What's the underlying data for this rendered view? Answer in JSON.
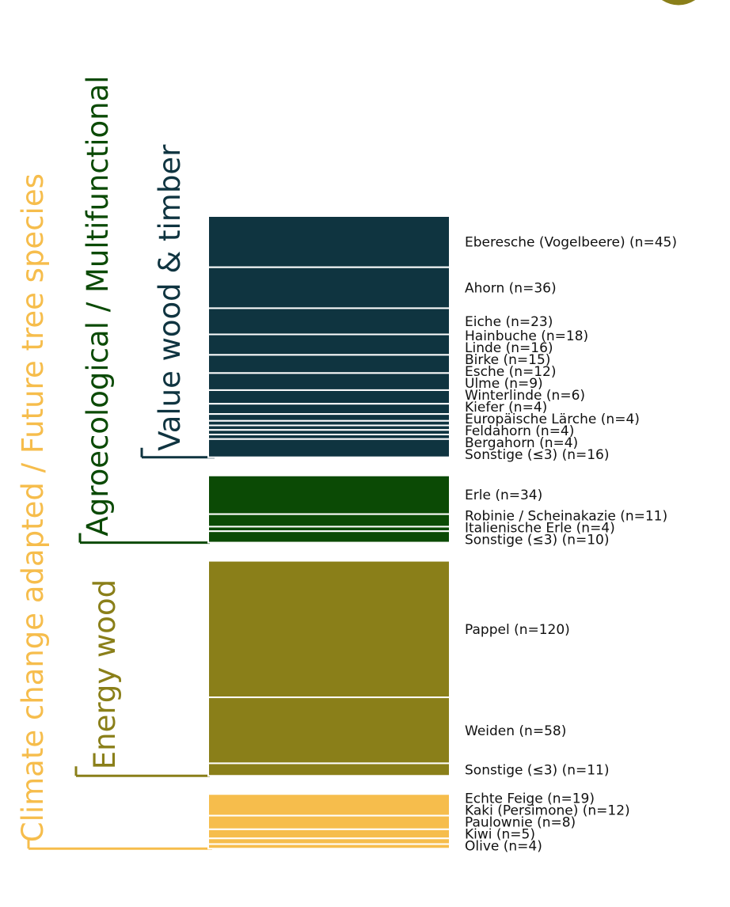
{
  "chart_data": {
    "type": "bar",
    "stacked": true,
    "orientation": "vertical",
    "groups": [
      {
        "name": "Value wood & timber",
        "color": "#0f3440",
        "items": [
          {
            "label": "Eberesche (Vogelbeere) (n=45)",
            "n": 45
          },
          {
            "label": "Ahorn (n=36)",
            "n": 36
          },
          {
            "label": "Eiche (n=23)",
            "n": 23
          },
          {
            "label": "Hainbuche (n=18)",
            "n": 18
          },
          {
            "label": "Linde (n=16)",
            "n": 16
          },
          {
            "label": "Birke (n=15)",
            "n": 15
          },
          {
            "label": "Esche (n=12)",
            "n": 12
          },
          {
            "label": "Ulme (n=9)",
            "n": 9
          },
          {
            "label": "Winterlinde (n=6)",
            "n": 6
          },
          {
            "label": "Kiefer (n=4)",
            "n": 4
          },
          {
            "label": "Europäische Lärche (n=4)",
            "n": 4
          },
          {
            "label": "Feldahorn (n=4)",
            "n": 4
          },
          {
            "label": "Bergahorn (n=4)",
            "n": 4
          },
          {
            "label": "Sonstige (≤3) (n=16)",
            "n": 16
          }
        ]
      },
      {
        "name": "Agroecological / Multifunctional",
        "color": "#0b4a05",
        "items": [
          {
            "label": "Erle (n=34)",
            "n": 34
          },
          {
            "label": "Robinie / Scheinakazie (n=11)",
            "n": 11
          },
          {
            "label": "Italienische Erle (n=4)",
            "n": 4
          },
          {
            "label": "Sonstige (≤3) (n=10)",
            "n": 10
          }
        ]
      },
      {
        "name": "Energy wood",
        "color": "#8a7f19",
        "items": [
          {
            "label": "Pappel (n=120)",
            "n": 120
          },
          {
            "label": "Weiden (n=58)",
            "n": 58
          },
          {
            "label": "Sonstige (≤3) (n=11)",
            "n": 11
          }
        ]
      },
      {
        "name": "Climate change adapted / Future tree species",
        "color": "#f6bd4c",
        "items": [
          {
            "label": "Echte Feige (n=19)",
            "n": 19
          },
          {
            "label": "Kaki (Persimone) (n=12)",
            "n": 12
          },
          {
            "label": "Paulownie (n=8)",
            "n": 8
          },
          {
            "label": "Kiwi (n=5)",
            "n": 5
          },
          {
            "label": "Olive (n=4)",
            "n": 4
          }
        ]
      }
    ]
  },
  "logo": {
    "colors": [
      "#8a7f19",
      "#0f3440"
    ]
  }
}
